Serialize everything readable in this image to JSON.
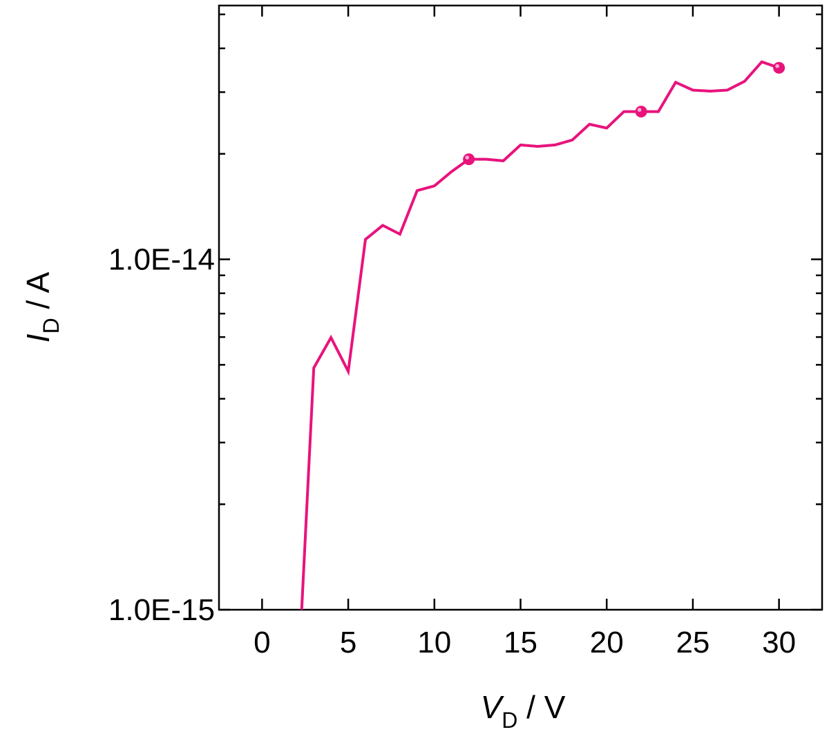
{
  "chart_data": {
    "type": "line",
    "title": "",
    "xlabel": {
      "symbol": "V",
      "subscript": "D",
      "unit": " / V"
    },
    "ylabel": {
      "symbol": "I",
      "subscript": "D",
      "unit": " / A"
    },
    "xlim": [
      -2.5,
      32.5
    ],
    "ylim": [
      1e-15,
      5.3e-14
    ],
    "yscale": "log",
    "x_ticks": [
      0,
      5,
      10,
      15,
      20,
      25,
      30
    ],
    "x_tick_labels": [
      "0",
      "5",
      "10",
      "15",
      "20",
      "25",
      "30"
    ],
    "y_ticks": [
      1e-15,
      1e-14
    ],
    "y_tick_labels": [
      "1.0E-15",
      "1.0E-14"
    ],
    "grid": false,
    "series": [
      {
        "color": "#e8137c",
        "x": [
          2.3,
          3,
          4,
          5,
          6,
          7,
          8,
          9,
          10,
          11,
          12,
          13,
          14,
          15,
          16,
          17,
          18,
          19,
          20,
          21,
          22,
          23,
          24,
          25,
          26,
          27,
          28,
          29,
          30
        ],
        "y": [
          1e-15,
          4.9e-15,
          5.98e-15,
          4.79e-15,
          1.14e-14,
          1.25e-14,
          1.18e-14,
          1.57e-14,
          1.62e-14,
          1.78e-14,
          1.93e-14,
          1.93e-14,
          1.91e-14,
          2.12e-14,
          2.1e-14,
          2.12e-14,
          2.19e-14,
          2.43e-14,
          2.37e-14,
          2.64e-14,
          2.64e-14,
          2.64e-14,
          3.2e-14,
          3.04e-14,
          3.02e-14,
          3.04e-14,
          3.22e-14,
          3.66e-14,
          3.52e-14
        ],
        "markers_x": [
          12,
          22,
          30
        ],
        "markers_y": [
          1.93e-14,
          2.64e-14,
          3.52e-14
        ]
      }
    ]
  }
}
